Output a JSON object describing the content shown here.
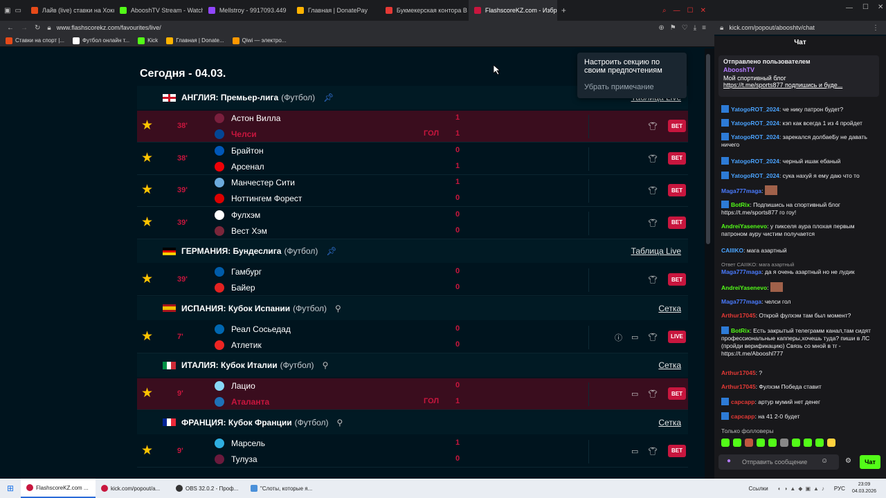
{
  "browser": {
    "tabs": [
      {
        "label": "Лайв (live) ставки на Хоккей",
        "fav": "#e64a19"
      },
      {
        "label": "AbooshTV Stream - Watch",
        "fav": "#53fc18"
      },
      {
        "label": "Mellstroy - 9917093.449",
        "fav": "#9146ff"
      },
      {
        "label": "Главная | DonatePay",
        "fav": "#ffb300"
      },
      {
        "label": "Букмекерская контора B",
        "fav": "#e53935"
      },
      {
        "label": "FlashscoreKZ.com - Избр",
        "fav": "#c8163e"
      }
    ],
    "url": "www.flashscorekz.com/favourites/live/",
    "bookmarks": [
      "Ставки на спорт |...",
      "Футбол онлайн т...",
      "Kick",
      "Главная | Donate...",
      "Qiwi — электро..."
    ],
    "chat_url": "kick.com/popout/abooshtv/chat"
  },
  "content": {
    "day_title": "Сегодня - 04.03.",
    "tooltip": {
      "text": "Настроить секцию по своим предпочтениям",
      "dismiss": "Убрать примечание"
    },
    "leagues": [
      {
        "country": "АНГЛИЯ: Премьер-лига",
        "sport": "(Футбол)",
        "link": "Таблица Live",
        "pinned": true,
        "matches": [
          {
            "minute": "38'",
            "home": "Астон Вилла",
            "away": "Челси",
            "hs": "1",
            "as": "1",
            "goal": "ГОЛ",
            "goal_side": "away",
            "highlight": true,
            "btn": "BET"
          },
          {
            "minute": "38'",
            "home": "Брайтон",
            "away": "Арсенал",
            "hs": "0",
            "as": "1",
            "btn": "BET"
          },
          {
            "minute": "39'",
            "home": "Манчестер Сити",
            "away": "Ноттингем Форест",
            "hs": "1",
            "as": "0",
            "btn": "BET"
          },
          {
            "minute": "39'",
            "home": "Фулхэм",
            "away": "Вест Хэм",
            "hs": "0",
            "as": "0",
            "btn": "BET"
          }
        ]
      },
      {
        "country": "ГЕРМАНИЯ: Бундеслига",
        "sport": "(Футбол)",
        "link": "Таблица Live",
        "pinned": true,
        "matches": [
          {
            "minute": "39'",
            "home": "Гамбург",
            "away": "Байер",
            "hs": "0",
            "as": "0",
            "btn": "BET"
          }
        ]
      },
      {
        "country": "ИСПАНИЯ: Кубок Испании",
        "sport": "(Футбол)",
        "link": "Сетка",
        "pinned": false,
        "matches": [
          {
            "minute": "7'",
            "home": "Реал Сосьедад",
            "away": "Атлетик",
            "hs": "0",
            "as": "0",
            "btn": "LIVE"
          }
        ]
      },
      {
        "country": "ИТАЛИЯ: Кубок Италии",
        "sport": "(Футбол)",
        "link": "Сетка",
        "pinned": false,
        "matches": [
          {
            "minute": "9'",
            "home": "Лацио",
            "away": "Аталанта",
            "hs": "0",
            "as": "1",
            "goal": "ГОЛ",
            "goal_side": "away",
            "highlight": true,
            "btn": "BET"
          }
        ]
      },
      {
        "country": "ФРАНЦИЯ: Кубок Франции",
        "sport": "(Футбол)",
        "link": "Сетка",
        "pinned": false,
        "matches": [
          {
            "minute": "9'",
            "home": "Марсель",
            "away": "Тулуза",
            "hs": "1",
            "as": "0",
            "btn": "BET"
          }
        ]
      }
    ]
  },
  "chat": {
    "title": "Чат",
    "pinned": {
      "header": "Отправлено пользователем",
      "user": "AbooshTV",
      "text": "Мой спортивный блог",
      "link": "https://t.me/sports877 подпишись и буде..."
    },
    "messages": [
      {
        "user": "YatogoROT_2024",
        "color": "#4aa3ff",
        "text": "че нику патрон будет?"
      },
      {
        "user": "YatogoROT_2024",
        "color": "#4aa3ff",
        "text": "кэп как всегда 1 из 4 пройдет"
      },
      {
        "user": "YatogoROT_2024",
        "color": "#4aa3ff",
        "text": "зарекался долбаеБу не давать ничего"
      },
      {
        "user": "YatogoROT_2024",
        "color": "#4aa3ff",
        "text": "черный ишак ебаный"
      },
      {
        "user": "YatogoROT_2024",
        "color": "#4aa3ff",
        "text": "сука нахуй я ему даю что то"
      },
      {
        "user": "Maga777maga",
        "color": "#4a7bff",
        "text": ""
      },
      {
        "user": "BotRix",
        "color": "#53fc18",
        "text": "Подпишись на спортивный блог https://t.me/sports877 го гоу!"
      },
      {
        "user": "AndreiYasenevo",
        "color": "#53fc18",
        "text": "у пикселя аура плохая первым патроном ауру чистим получается"
      },
      {
        "user": "CAIIIKO",
        "color": "#4aa3ff",
        "text": "мага азартный"
      },
      {
        "user": "Maga777maga",
        "color": "#4a7bff",
        "text": "да я очень азартный но не лудик",
        "reply": "Ответ CAIIIKO: мага азартный"
      },
      {
        "user": "AndreiYasenevo",
        "color": "#53fc18",
        "text": ""
      },
      {
        "user": "Maga777maga",
        "color": "#4a7bff",
        "text": "челси гол"
      },
      {
        "user": "Arthur17045",
        "color": "#e53935",
        "text": "Открой фулхэм там был момент?"
      },
      {
        "user": "BotRix",
        "color": "#53fc18",
        "text": "Есть закрытый телеграмм канал,там сидят профессиональные капперы,хочешь туда? пиши в ЛС (пройди верификацию) Связь со мной в тг - https://t.me/Abooshl777"
      },
      {
        "user": "Arthur17045",
        "color": "#e53935",
        "text": "?"
      },
      {
        "user": "Arthur17045",
        "color": "#e53935",
        "text": "Фулхэм Победа ставит"
      },
      {
        "user": "capcapp",
        "color": "#e53935",
        "text": "артур мумий нет денег"
      },
      {
        "user": "capcapp",
        "color": "#e53935",
        "text": "на 41 2-0 будет"
      }
    ],
    "followers_only": "Только фолловеры",
    "input_placeholder": "Отправить сообщение",
    "send_label": "Чат"
  },
  "taskbar": {
    "items": [
      "FlashscoreKZ.com ...",
      "kick.com/popout/a...",
      "OBS 32.0.2 - Проф...",
      "\"Слоты, которые я..."
    ],
    "lang": "РУС",
    "links": "Ссылки",
    "time": "23:09",
    "date": "04.03.2026"
  }
}
